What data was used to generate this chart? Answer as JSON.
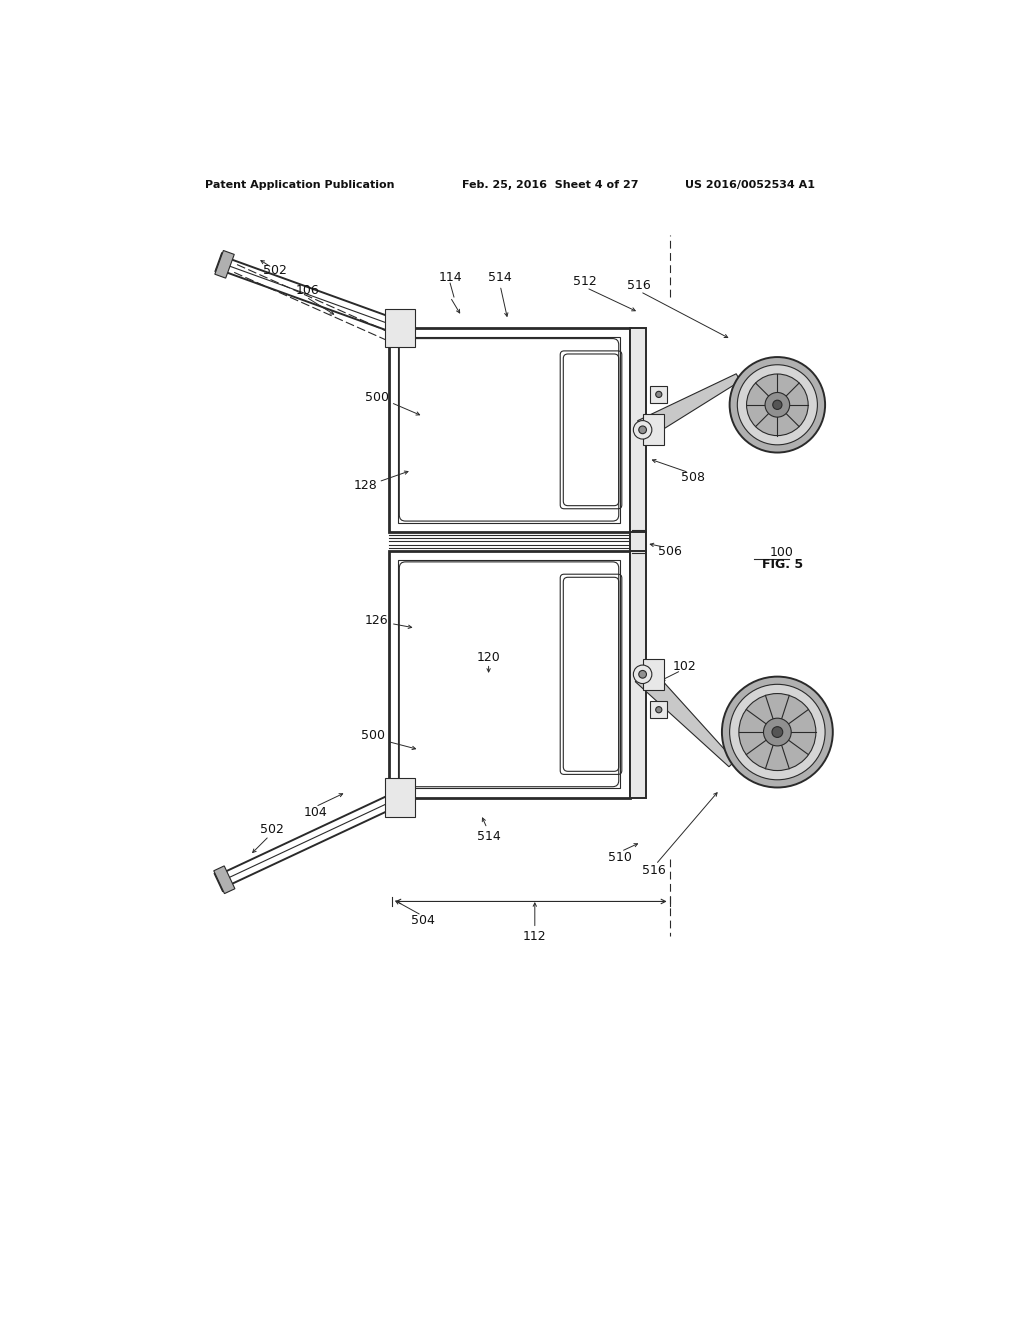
{
  "background_color": "#ffffff",
  "header_left": "Patent Application Publication",
  "header_center": "Feb. 25, 2016  Sheet 4 of 27",
  "header_right": "US 2016/0052534 A1",
  "figure_label": "FIG. 5",
  "figure_number": "100",
  "line_color": "#2a2a2a",
  "gray_fill": "#c8c8c8",
  "dark_fill": "#909090",
  "light_fill": "#e8e8e8",
  "medium_fill": "#b0b0b0"
}
